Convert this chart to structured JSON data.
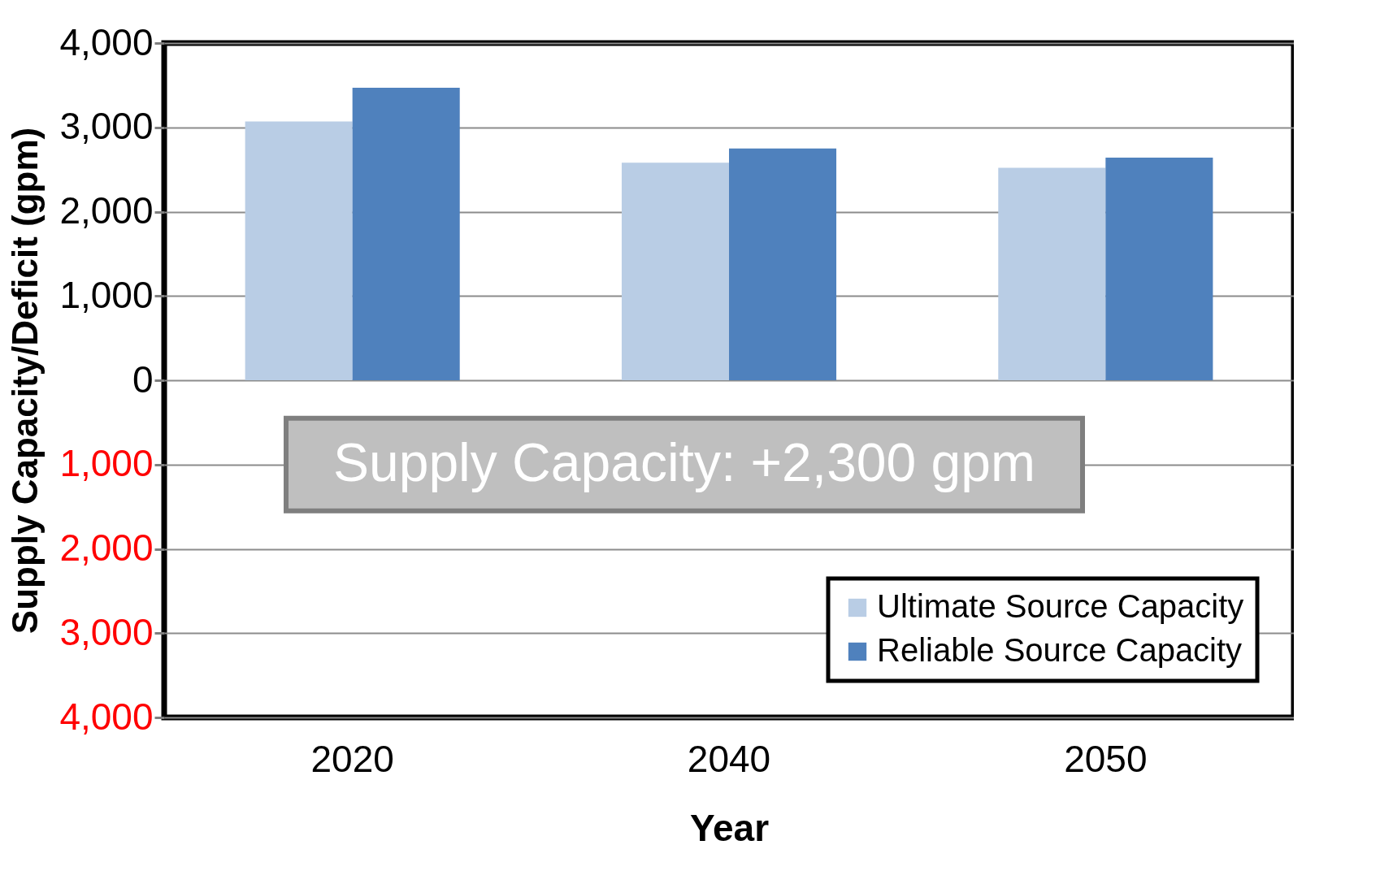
{
  "chart_data": {
    "type": "bar",
    "xlabel": "Year",
    "ylabel": "Supply Capacity/Deficit  (gpm)",
    "categories": [
      "2020",
      "2040",
      "2050"
    ],
    "series": [
      {
        "name": "Ultimate Source Capacity",
        "color": "#b9cde5",
        "values": [
          3070,
          2580,
          2520
        ]
      },
      {
        "name": "Reliable Source Capacity",
        "color": "#4f81bd",
        "values": [
          3470,
          2750,
          2640
        ]
      }
    ],
    "ylim": [
      -4000,
      4000
    ],
    "yticks": [
      {
        "value": -4000,
        "label": "4,000"
      },
      {
        "value": -3000,
        "label": "3,000"
      },
      {
        "value": -2000,
        "label": "2,000"
      },
      {
        "value": -1000,
        "label": "1,000"
      },
      {
        "value": 0,
        "label": "0"
      },
      {
        "value": 1000,
        "label": "1,000"
      },
      {
        "value": 2000,
        "label": "2,000"
      },
      {
        "value": 3000,
        "label": "3,000"
      },
      {
        "value": 4000,
        "label": "4,000"
      }
    ],
    "grid": "y",
    "legend": "bottom right",
    "annotations": [
      "Supply Capacity:  +2,300 gpm"
    ]
  }
}
